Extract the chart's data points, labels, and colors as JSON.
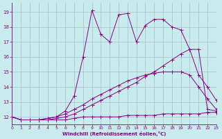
{
  "background_color": "#c8ecec",
  "line_color": "#880088",
  "grid_color": "#aabbcc",
  "xlabel": "Windchill (Refroidissement éolien,°C)",
  "xlim": [
    0,
    23
  ],
  "ylim": [
    11.5,
    19.6
  ],
  "yticks": [
    12,
    13,
    14,
    15,
    16,
    17,
    18,
    19
  ],
  "xticks": [
    0,
    1,
    2,
    3,
    4,
    5,
    6,
    7,
    8,
    9,
    10,
    11,
    12,
    13,
    14,
    15,
    16,
    17,
    18,
    19,
    20,
    21,
    22,
    23
  ],
  "series": [
    {
      "x": [
        0,
        1,
        2,
        3,
        4,
        5,
        6,
        7,
        8,
        9,
        10,
        11,
        12,
        13,
        14,
        15,
        16,
        17,
        18,
        19,
        20,
        21,
        22,
        23
      ],
      "y": [
        12.0,
        11.8,
        11.8,
        11.8,
        11.8,
        11.8,
        11.8,
        11.9,
        12.0,
        12.0,
        12.0,
        12.0,
        12.0,
        12.1,
        12.1,
        12.1,
        12.1,
        12.2,
        12.2,
        12.2,
        12.2,
        12.2,
        12.3,
        12.3
      ]
    },
    {
      "x": [
        0,
        1,
        2,
        3,
        4,
        5,
        6,
        7,
        8,
        9,
        10,
        11,
        12,
        13,
        14,
        15,
        16,
        17,
        18,
        19,
        20,
        21,
        22,
        23
      ],
      "y": [
        12.0,
        11.8,
        11.8,
        11.8,
        11.8,
        11.9,
        12.0,
        12.2,
        12.5,
        12.8,
        13.1,
        13.4,
        13.7,
        14.0,
        14.3,
        14.7,
        15.0,
        15.4,
        15.8,
        16.2,
        16.5,
        16.5,
        12.5,
        12.4
      ]
    },
    {
      "x": [
        0,
        1,
        2,
        3,
        4,
        5,
        6,
        7,
        8,
        9,
        10,
        11,
        12,
        13,
        14,
        15,
        16,
        17,
        18,
        19,
        20,
        21,
        22,
        23
      ],
      "y": [
        12.0,
        11.8,
        11.8,
        11.8,
        11.9,
        12.0,
        12.2,
        12.5,
        12.8,
        13.2,
        13.5,
        13.8,
        14.1,
        14.4,
        14.6,
        14.8,
        14.9,
        15.0,
        15.0,
        15.0,
        14.8,
        14.0,
        13.2,
        12.5
      ]
    },
    {
      "x": [
        0,
        1,
        2,
        3,
        4,
        5,
        6,
        7,
        8,
        9,
        10,
        11,
        12,
        13,
        14,
        15,
        16,
        17,
        18,
        19,
        20,
        21,
        22,
        23
      ],
      "y": [
        12.0,
        11.8,
        11.8,
        11.8,
        11.9,
        12.0,
        12.4,
        13.4,
        16.0,
        19.1,
        17.5,
        17.0,
        18.8,
        18.9,
        17.0,
        18.1,
        18.5,
        18.5,
        18.0,
        17.8,
        16.5,
        14.8,
        14.0,
        13.1
      ]
    }
  ]
}
